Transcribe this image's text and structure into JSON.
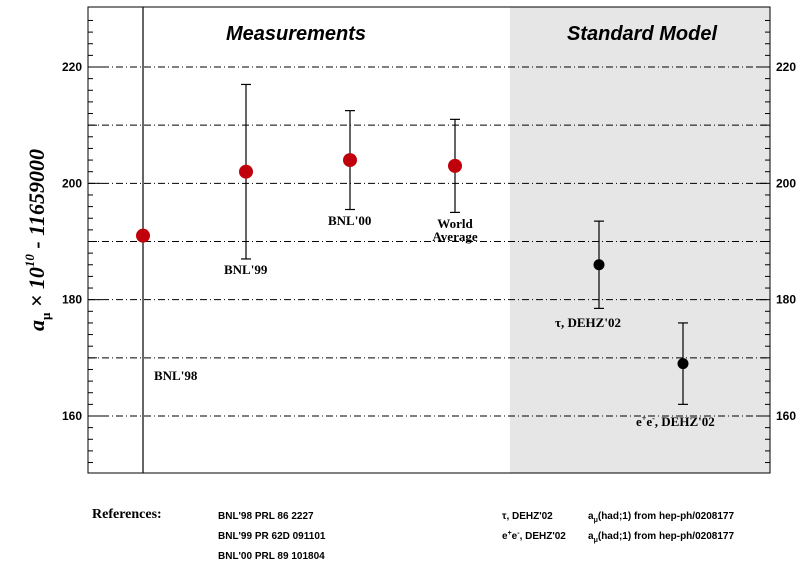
{
  "chart_data": {
    "type": "scatter",
    "ylabel_main": "a",
    "ylabel_sub": "μ",
    "ylabel_rest_pre": " × 10",
    "ylabel_sup": "10",
    "ylabel_rest_post": " - 11659000",
    "ylim": [
      150,
      228
    ],
    "y_ticks": [
      160,
      180,
      200,
      220
    ],
    "dashed_gridlines": [
      160,
      170,
      180,
      190,
      200,
      210,
      220
    ],
    "section_labels": [
      "Measurements",
      "Standard Model"
    ],
    "groups": {
      "measurements": {
        "color": "#c0000a",
        "points": [
          {
            "label": "BNL'98",
            "value": 191,
            "err_low": 191,
            "err_high": 228
          },
          {
            "label": "BNL'99",
            "value": 202,
            "err_low": 15,
            "err_high": 15
          },
          {
            "label": "BNL'00",
            "value": 204,
            "err_low": 8.5,
            "err_high": 8.5
          },
          {
            "label": "World Average",
            "value": 203,
            "err_low": 8,
            "err_high": 8
          }
        ]
      },
      "standard_model": {
        "color": "#000000",
        "points": [
          {
            "label": "τ, DEHZ'02",
            "value": 186,
            "err_low": 7.5,
            "err_high": 7.5
          },
          {
            "label": "e+e-, DEHZ'02",
            "value": 169,
            "err_low": 7,
            "err_high": 7
          }
        ]
      }
    }
  },
  "labels": {
    "bnl98": "BNL'98",
    "bnl99": "BNL'99",
    "bnl00": "BNL'00",
    "world1": "World",
    "world2": "Average",
    "tau": "τ,  DEHZ'02",
    "ee_e1": "e",
    "ee_s1": "+",
    "ee_e2": "e",
    "ee_s2": "-",
    "ee_rest": ",  DEHZ'02"
  },
  "references": {
    "heading": "References:",
    "left": [
      "BNL'98  PRL 86 2227",
      "BNL'99  PR 62D 091101",
      "BNL'00  PRL 89 101804"
    ],
    "right": [
      {
        "key": "τ, DEHZ'02",
        "a": "a",
        "sub": "μ",
        "text": "(had;1) from hep-ph/0208177"
      },
      {
        "key_e1": "e",
        "key_s1": "+",
        "key_e2": "e",
        "key_s2": "-",
        "key_rest": ", DEHZ'02",
        "a": "a",
        "sub": "μ",
        "text": "(had;1) from hep-ph/0208177"
      }
    ]
  }
}
